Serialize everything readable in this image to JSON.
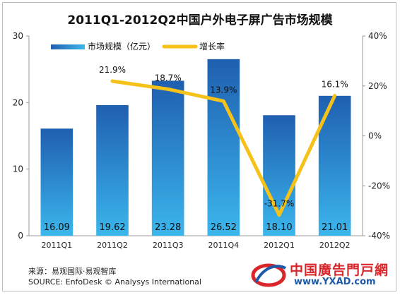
{
  "chart_data": {
    "type": "bar",
    "title": "2011Q1-2012Q2中国户外电子屏广告市场规模",
    "categories": [
      "2011Q1",
      "2011Q2",
      "2011Q3",
      "2011Q4",
      "2012Q1",
      "2012Q2"
    ],
    "series": [
      {
        "name": "市场规模（亿元）",
        "type": "bar",
        "axis": "left",
        "values": [
          16.09,
          19.62,
          23.28,
          26.52,
          18.1,
          21.01
        ],
        "labels": [
          "16.09",
          "19.62",
          "23.28",
          "26.52",
          "18.10",
          "21.01"
        ]
      },
      {
        "name": "增长率",
        "type": "line",
        "axis": "right",
        "values": [
          null,
          21.9,
          18.7,
          13.9,
          -31.7,
          16.1
        ],
        "labels": [
          "",
          "21.9%",
          "18.7%",
          "13.9%",
          "-31.7%",
          "16.1%"
        ]
      }
    ],
    "left_axis": {
      "ticks": [
        "0",
        "10",
        "20",
        "30"
      ],
      "ylim": [
        0,
        30
      ]
    },
    "right_axis": {
      "ticks": [
        "-40%",
        "-20%",
        "0%",
        "20%",
        "40%"
      ],
      "ylim": [
        -40,
        40
      ]
    },
    "legend_position": "top-left",
    "colors": {
      "bar_top": "#1f5fb0",
      "bar_bottom": "#3bb6ec",
      "line": "#f6c21a"
    }
  },
  "source": {
    "cn": "来源：易观国际·易观智库",
    "en": "SOURCE: EnfoDesk © Analysys International"
  },
  "watermark": {
    "cn": "中国廣告門戸網",
    "url": "www.YXAD.com"
  }
}
